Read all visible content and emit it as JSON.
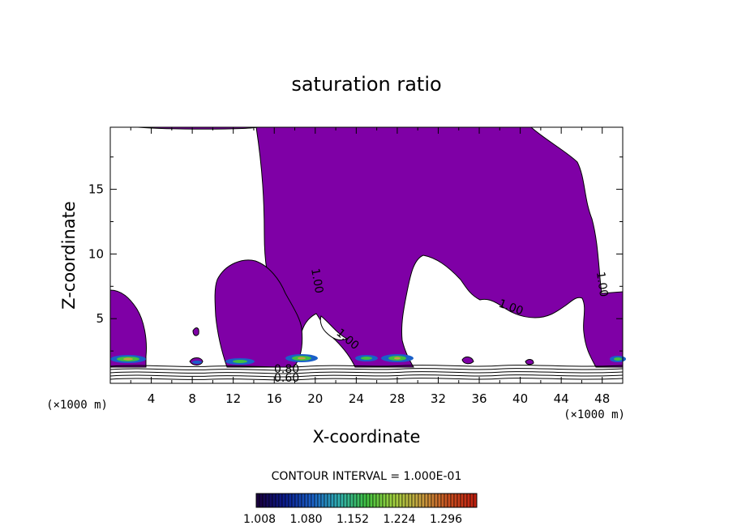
{
  "chart_data": {
    "type": "contour",
    "title": "saturation ratio",
    "xlabel": "X-coordinate",
    "ylabel": "Z-coordinate",
    "x_unit": "(×1000 m)",
    "y_unit": "(×1000 m)",
    "xlim": [
      0,
      50
    ],
    "ylim": [
      0,
      19.8
    ],
    "x_ticks": [
      "4",
      "8",
      "12",
      "16",
      "20",
      "24",
      "28",
      "32",
      "36",
      "40",
      "44",
      "48"
    ],
    "y_ticks": [
      "5",
      "10",
      "15"
    ],
    "fill_color": "#7f00a6",
    "contour_interval_text": "CONTOUR INTERVAL = 1.000E-01",
    "contour_labels": [
      "1.00",
      "1.00",
      "1.00",
      "1.00",
      "0.80",
      "0.60"
    ],
    "colorbar": {
      "tick_labels": [
        "1.008",
        "1.080",
        "1.152",
        "1.224",
        "1.296"
      ],
      "colors": [
        "#1a0040",
        "#0a1c8c",
        "#1a60c8",
        "#30b0b0",
        "#40c040",
        "#a0d040",
        "#c8a040",
        "#c85020",
        "#c02010"
      ]
    }
  }
}
